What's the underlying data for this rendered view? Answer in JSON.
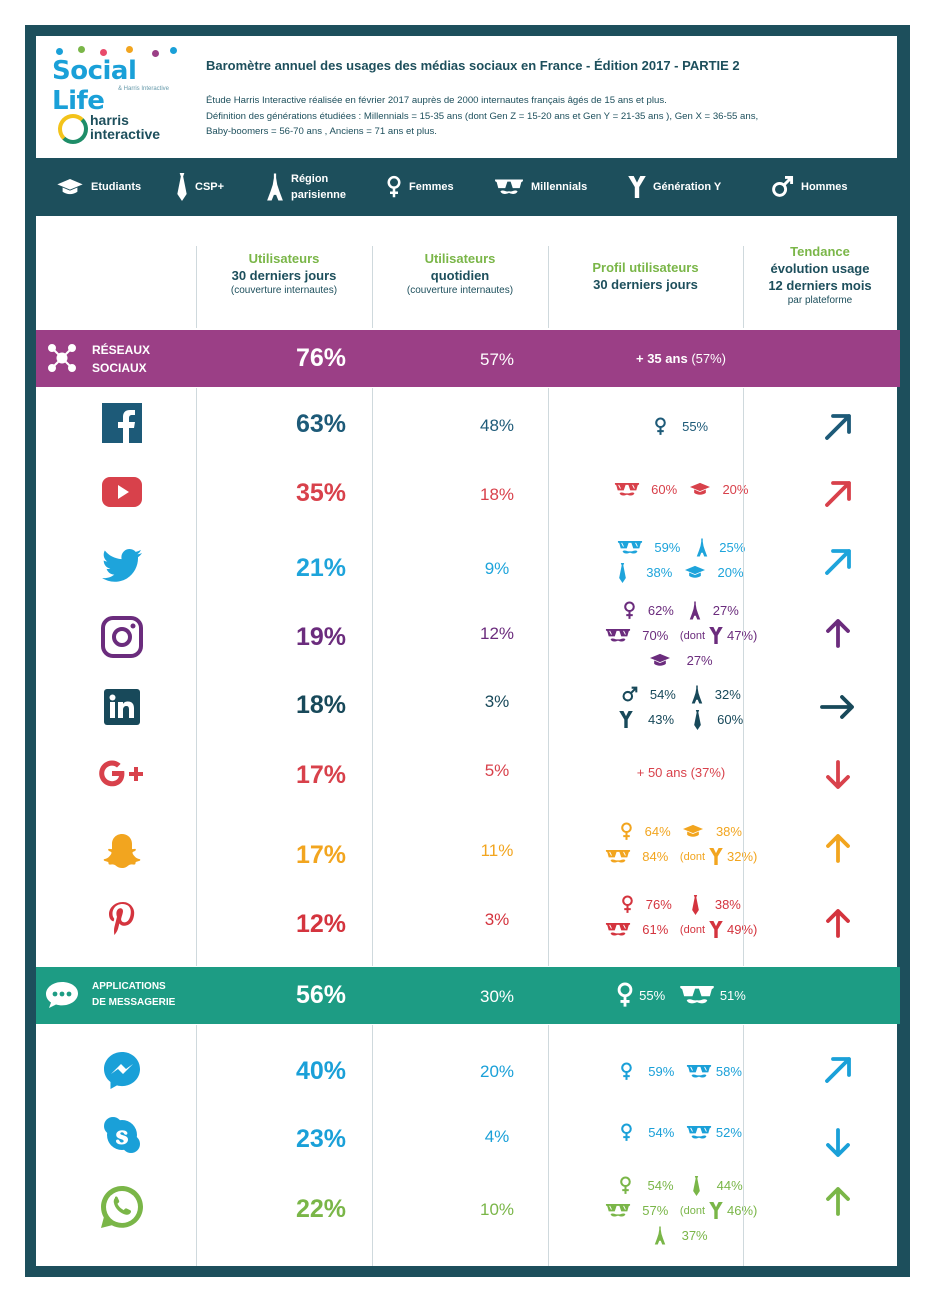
{
  "header": {
    "logo_social_life": "Social Life",
    "logo_social_life_sub": "& Harris Interactive",
    "logo_harris": "harris",
    "logo_interactive": "interactive",
    "title": "Baromètre annuel des usages des médias sociaux en France - Édition 2017 - PARTIE 2",
    "desc_1": "Étude Harris Interactive réalisée en février 2017 auprès de 2000 internautes français âgés de 15 ans et plus.",
    "desc_2": "Définition des générations étudiées : Millennials = 15-35 ans (dont Gen Z = 15-20 ans et Gen Y = 21-35 ans ), Gen X = 36-55 ans,",
    "desc_3": "Baby-boomers = 56-70 ans , Anciens = 71 ans et plus."
  },
  "legend": [
    {
      "label": "Etudiants",
      "icon": "graduation-cap-icon"
    },
    {
      "label": "CSP+",
      "icon": "tie-icon"
    },
    {
      "label_1": "Région",
      "label_2": "parisienne",
      "icon": "eiffel-tower-icon"
    },
    {
      "label": "Femmes",
      "icon": "female-symbol-icon"
    },
    {
      "label": "Millennials",
      "icon": "glasses-mustache-icon"
    },
    {
      "label": "Génération Y",
      "icon": "letter-y-icon"
    },
    {
      "label": "Hommes",
      "icon": "male-symbol-icon"
    }
  ],
  "columns": {
    "c1_a": "Utilisateurs",
    "c1_b": "30 derniers jours",
    "c1_c": "(couverture internautes)",
    "c2_a": "Utilisateurs",
    "c2_b": "quotidien",
    "c2_c": "(couverture internautes)",
    "c3_a": "Profil utilisateurs",
    "c3_b": "30 derniers jours",
    "c4_a": "Tendance",
    "c4_b": "évolution usage",
    "c4_c": "12 derniers mois",
    "c4_d": "par plateforme"
  },
  "reseaux": {
    "label_1": "RÉSEAUX",
    "label_2": "SOCIAUX",
    "users": "76%",
    "daily": "57%",
    "profile_main": "+ 35 ans",
    "profile_pct": "(57%)"
  },
  "messagerie": {
    "label_1": "APPLICATIONS",
    "label_2": "DE MESSAGERIE",
    "users": "56%",
    "daily": "30%",
    "profile_1": "55%",
    "profile_2": "51%"
  },
  "rows": {
    "facebook": {
      "users": "63%",
      "daily": "48%",
      "p": [
        "55%"
      ],
      "trend": "up-right"
    },
    "youtube": {
      "users": "35%",
      "daily": "18%",
      "p": [
        "60%",
        "20%"
      ],
      "trend": "up-right"
    },
    "twitter": {
      "users": "21%",
      "daily": "9%",
      "p": [
        "59%",
        "25%",
        "38%",
        "20%"
      ],
      "trend": "up-right"
    },
    "instagram": {
      "users": "19%",
      "daily": "12%",
      "p": [
        "62%",
        "27%",
        "70%",
        "(dont",
        "47%)",
        "27%"
      ],
      "trend": "up"
    },
    "linkedin": {
      "users": "18%",
      "daily": "3%",
      "p": [
        "54%",
        "32%",
        "43%",
        "60%"
      ],
      "trend": "right"
    },
    "googleplus": {
      "users": "17%",
      "daily": "5%",
      "p": [
        "+ 50 ans (37%)"
      ],
      "trend": "down"
    },
    "snapchat": {
      "users": "17%",
      "daily": "11%",
      "p": [
        "64%",
        "38%",
        "84%",
        "(dont",
        "32%)"
      ],
      "trend": "up"
    },
    "pinterest": {
      "users": "12%",
      "daily": "3%",
      "p": [
        "76%",
        "38%",
        "61%",
        "(dont",
        "49%)"
      ],
      "trend": "up"
    },
    "messenger": {
      "users": "40%",
      "daily": "20%",
      "p": [
        "59%",
        "58%"
      ],
      "trend": "up-right"
    },
    "skype": {
      "users": "23%",
      "daily": "4%",
      "p": [
        "54%",
        "52%"
      ],
      "trend": "down"
    },
    "whatsapp": {
      "users": "22%",
      "daily": "10%",
      "p": [
        "54%",
        "44%",
        "57%",
        "(dont",
        "46%)",
        "37%"
      ],
      "trend": "up"
    }
  },
  "colors": {
    "frame": "#1d4f5c",
    "reseaux": "#9b3f86",
    "messagerie": "#1d9c84",
    "green": "#7ab648"
  }
}
